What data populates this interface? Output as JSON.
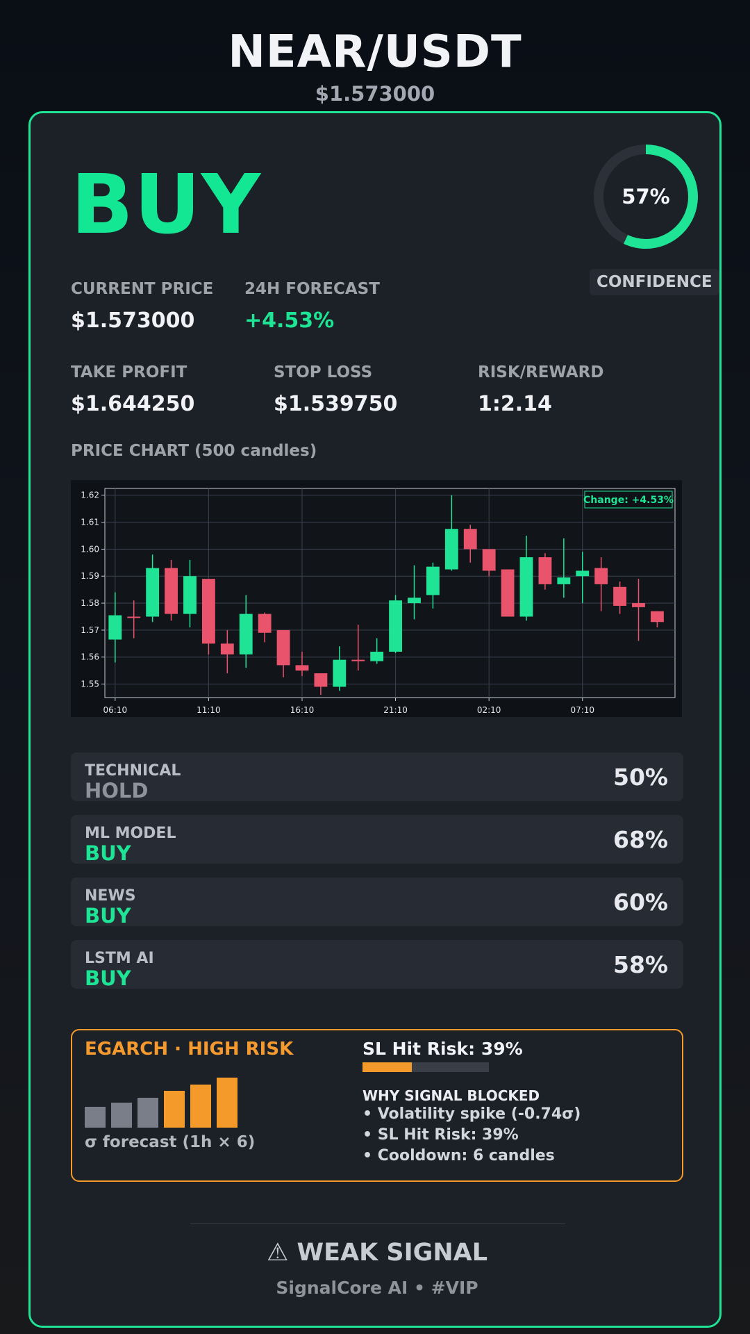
{
  "header": {
    "pair": "NEAR/USDT",
    "price": "$1.573000"
  },
  "signal": {
    "action": "BUY",
    "confidence_pct": 57,
    "confidence_text": "57%",
    "confidence_label": "CONFIDENCE",
    "accent": "#14e793"
  },
  "stats": {
    "current_price": {
      "label": "CURRENT PRICE",
      "value": "$1.573000"
    },
    "forecast": {
      "label": "24H FORECAST",
      "value": "+4.53%"
    },
    "take_profit": {
      "label": "TAKE PROFIT",
      "value": "$1.644250"
    },
    "stop_loss": {
      "label": "STOP LOSS",
      "value": "$1.539750"
    },
    "risk_reward": {
      "label": "RISK/REWARD",
      "value": "1:2.14"
    }
  },
  "chart_title": "PRICE CHART (500 candles)",
  "chart_data": {
    "type": "candlestick",
    "change_annotation": "Change: +4.53%",
    "x_ticks": [
      "06:10",
      "11:10",
      "16:10",
      "21:10",
      "02:10",
      "07:10"
    ],
    "y_ticks": [
      "1.55",
      "1.56",
      "1.57",
      "1.58",
      "1.59",
      "1.60",
      "1.61",
      "1.62"
    ],
    "ylim": [
      1.545,
      1.6225
    ],
    "grid": true,
    "up_color": "#1fe495",
    "down_color": "#e9546c",
    "candles": [
      {
        "o": 1.5665,
        "h": 1.584,
        "l": 1.558,
        "c": 1.5755
      },
      {
        "o": 1.575,
        "h": 1.581,
        "l": 1.567,
        "c": 1.5745
      },
      {
        "o": 1.575,
        "h": 1.598,
        "l": 1.573,
        "c": 1.593
      },
      {
        "o": 1.593,
        "h": 1.596,
        "l": 1.5735,
        "c": 1.576
      },
      {
        "o": 1.576,
        "h": 1.596,
        "l": 1.571,
        "c": 1.59
      },
      {
        "o": 1.589,
        "h": 1.589,
        "l": 1.561,
        "c": 1.565
      },
      {
        "o": 1.565,
        "h": 1.57,
        "l": 1.554,
        "c": 1.561
      },
      {
        "o": 1.561,
        "h": 1.583,
        "l": 1.556,
        "c": 1.576
      },
      {
        "o": 1.576,
        "h": 1.5765,
        "l": 1.5655,
        "c": 1.569
      },
      {
        "o": 1.57,
        "h": 1.57,
        "l": 1.5525,
        "c": 1.557
      },
      {
        "o": 1.557,
        "h": 1.562,
        "l": 1.553,
        "c": 1.555
      },
      {
        "o": 1.554,
        "h": 1.554,
        "l": 1.546,
        "c": 1.549
      },
      {
        "o": 1.549,
        "h": 1.564,
        "l": 1.5475,
        "c": 1.559
      },
      {
        "o": 1.559,
        "h": 1.572,
        "l": 1.555,
        "c": 1.5585
      },
      {
        "o": 1.5585,
        "h": 1.567,
        "l": 1.5575,
        "c": 1.562
      },
      {
        "o": 1.562,
        "h": 1.583,
        "l": 1.5615,
        "c": 1.581
      },
      {
        "o": 1.58,
        "h": 1.594,
        "l": 1.574,
        "c": 1.582
      },
      {
        "o": 1.583,
        "h": 1.595,
        "l": 1.578,
        "c": 1.5935
      },
      {
        "o": 1.5925,
        "h": 1.62,
        "l": 1.592,
        "c": 1.6075
      },
      {
        "o": 1.6075,
        "h": 1.609,
        "l": 1.595,
        "c": 1.6
      },
      {
        "o": 1.6,
        "h": 1.6,
        "l": 1.59,
        "c": 1.592
      },
      {
        "o": 1.5925,
        "h": 1.5925,
        "l": 1.575,
        "c": 1.575
      },
      {
        "o": 1.575,
        "h": 1.605,
        "l": 1.5735,
        "c": 1.597
      },
      {
        "o": 1.597,
        "h": 1.5985,
        "l": 1.585,
        "c": 1.587
      },
      {
        "o": 1.587,
        "h": 1.604,
        "l": 1.582,
        "c": 1.5895
      },
      {
        "o": 1.59,
        "h": 1.599,
        "l": 1.58,
        "c": 1.592
      },
      {
        "o": 1.593,
        "h": 1.597,
        "l": 1.577,
        "c": 1.587
      },
      {
        "o": 1.586,
        "h": 1.588,
        "l": 1.576,
        "c": 1.579
      },
      {
        "o": 1.58,
        "h": 1.589,
        "l": 1.566,
        "c": 1.5785
      },
      {
        "o": 1.577,
        "h": 1.577,
        "l": 1.571,
        "c": 1.573
      }
    ]
  },
  "components": [
    {
      "label": "TECHNICAL",
      "signal": "HOLD",
      "pct": "50%"
    },
    {
      "label": "ML MODEL",
      "signal": "BUY",
      "pct": "68%"
    },
    {
      "label": "NEWS",
      "signal": "BUY",
      "pct": "60%"
    },
    {
      "label": "LSTM AI",
      "signal": "BUY",
      "pct": "58%"
    }
  ],
  "risk": {
    "title": "EGARCH · HIGH RISK",
    "sigma_label": "σ forecast (1h × 6)",
    "forecast_bars": [
      {
        "value": 0.42,
        "color": "#7a7e88"
      },
      {
        "value": 0.5,
        "color": "#7a7e88"
      },
      {
        "value": 0.6,
        "color": "#7a7e88"
      },
      {
        "value": 0.74,
        "color": "#f39a2b"
      },
      {
        "value": 0.86,
        "color": "#f39a2b"
      },
      {
        "value": 1.0,
        "color": "#f39a2b"
      }
    ],
    "sl_hit_title": "SL Hit Risk: 39%",
    "sl_hit_fill": 0.39,
    "why_title": "WHY SIGNAL BLOCKED",
    "why_items": [
      "• Volatility spike (-0.74σ)",
      "• SL Hit Risk: 39%",
      "• Cooldown: 6 candles"
    ]
  },
  "footer": {
    "weak_signal": "⚠ WEAK SIGNAL",
    "brand": "SignalCore AI • #VIP"
  }
}
